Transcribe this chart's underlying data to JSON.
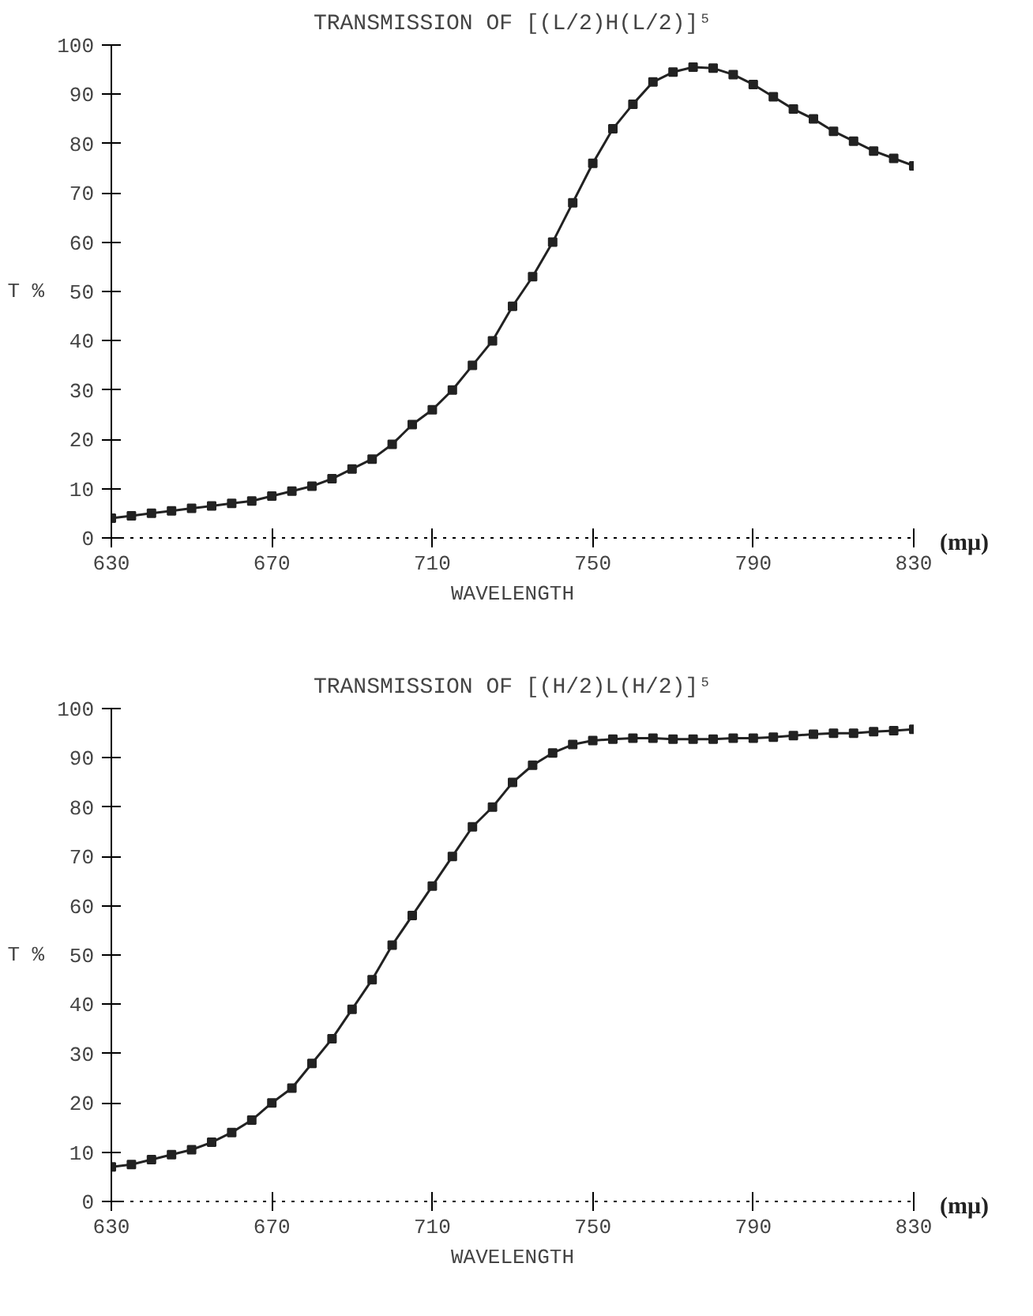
{
  "chart_data": [
    {
      "type": "line",
      "title": "TRANSMISSION OF [(L/2)H(L/2)]⁵",
      "xlabel": "WAVELENGTH",
      "ylabel": "T %",
      "annotations": [
        "(mμ)"
      ],
      "x": [
        630,
        635,
        640,
        645,
        650,
        655,
        660,
        665,
        670,
        675,
        680,
        685,
        690,
        695,
        700,
        705,
        710,
        715,
        720,
        725,
        730,
        735,
        740,
        745,
        750,
        755,
        760,
        765,
        770,
        775,
        780,
        785,
        790,
        795,
        800,
        805,
        810,
        815,
        820,
        825,
        830
      ],
      "series": [
        {
          "color": "#222222",
          "values": [
            4,
            4.5,
            5,
            5.5,
            6,
            6.5,
            7,
            7.5,
            8.5,
            9.5,
            10.5,
            12,
            14,
            16,
            19,
            23,
            26,
            30,
            35,
            40,
            47,
            53,
            60,
            68,
            76,
            83,
            88,
            92.5,
            94.5,
            95.5,
            95.3,
            94,
            92,
            89.5,
            87,
            85,
            82.5,
            80.5,
            78.5,
            77,
            75.5
          ]
        }
      ],
      "xlim": [
        630,
        830
      ],
      "ylim": [
        0,
        100
      ],
      "xticks": [
        630,
        670,
        710,
        750,
        790,
        830
      ],
      "yticks": [
        0,
        10,
        20,
        30,
        40,
        50,
        60,
        70,
        80,
        90,
        100
      ],
      "grid": false,
      "marker": "square",
      "line_style": "solid"
    },
    {
      "type": "line",
      "title": "TRANSMISSION OF [(H/2)L(H/2)]⁵",
      "xlabel": "WAVELENGTH",
      "ylabel": "T %",
      "annotations": [
        "(mμ)"
      ],
      "x": [
        630,
        635,
        640,
        645,
        650,
        655,
        660,
        665,
        670,
        675,
        680,
        685,
        690,
        695,
        700,
        705,
        710,
        715,
        720,
        725,
        730,
        735,
        740,
        745,
        750,
        755,
        760,
        765,
        770,
        775,
        780,
        785,
        790,
        795,
        800,
        805,
        810,
        815,
        820,
        825,
        830
      ],
      "series": [
        {
          "color": "#222222",
          "values": [
            7,
            7.5,
            8.5,
            9.5,
            10.5,
            12,
            14,
            16.5,
            20,
            23,
            28,
            33,
            39,
            45,
            52,
            58,
            64,
            70,
            76,
            80,
            85,
            88.5,
            91,
            92.7,
            93.5,
            93.8,
            94,
            94,
            93.8,
            93.8,
            93.8,
            94,
            94,
            94.2,
            94.5,
            94.8,
            95,
            95,
            95.3,
            95.5,
            95.8
          ]
        }
      ],
      "xlim": [
        630,
        830
      ],
      "ylim": [
        0,
        100
      ],
      "xticks": [
        630,
        670,
        710,
        750,
        790,
        830
      ],
      "yticks": [
        0,
        10,
        20,
        30,
        40,
        50,
        60,
        70,
        80,
        90,
        100
      ],
      "grid": false,
      "marker": "square",
      "line_style": "solid"
    }
  ]
}
